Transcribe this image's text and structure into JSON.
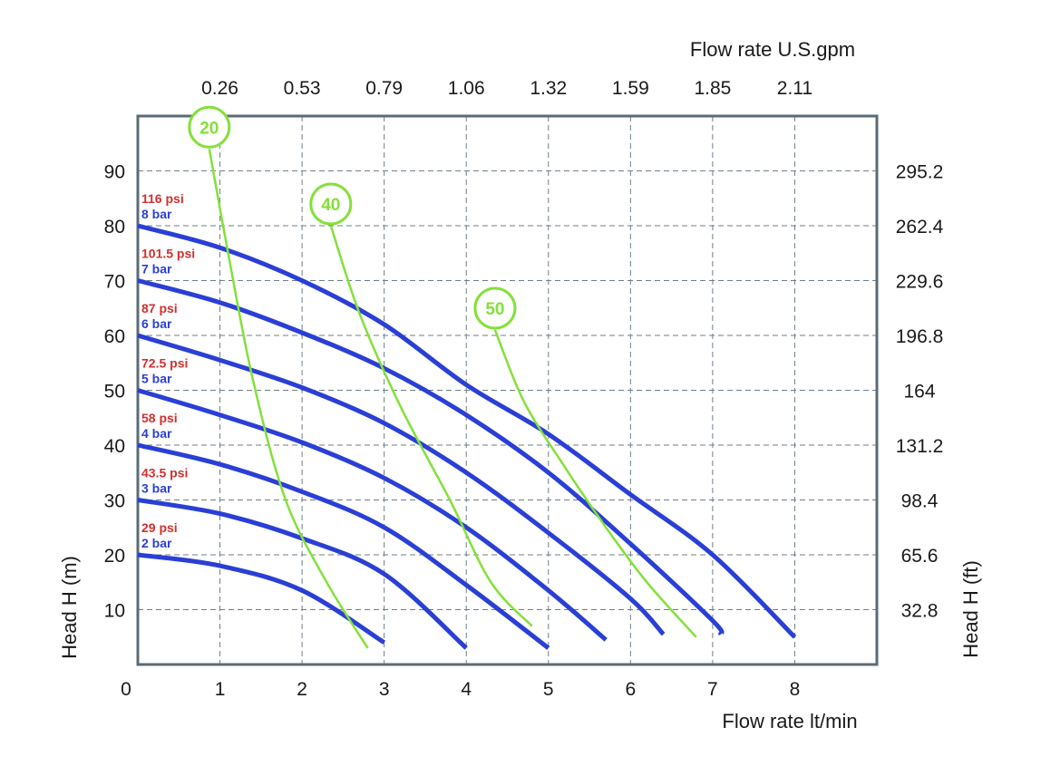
{
  "chart_data": {
    "type": "line",
    "x_bottom_label": "Flow rate  lt/min",
    "x_top_label": "Flow rate U.S.gpm",
    "y_left_label": "Head H (m)",
    "y_right_label": "Head H (ft)",
    "xlim": [
      0,
      9
    ],
    "ylim": [
      0,
      100
    ],
    "grid": true,
    "x_bottom_ticks": [
      "0",
      "1",
      "2",
      "3",
      "4",
      "5",
      "6",
      "7",
      "8"
    ],
    "x_top_ticks": [
      "0.26",
      "0.53",
      "0.79",
      "1.06",
      "1.32",
      "1.59",
      "1.85",
      "2.11"
    ],
    "y_left_ticks": [
      "10",
      "20",
      "30",
      "40",
      "50",
      "60",
      "70",
      "80",
      "90"
    ],
    "y_right_ticks": [
      "32.8",
      "65.6",
      "98.4",
      "131.2",
      "164",
      "196.8",
      "229.6",
      "262.4",
      "295.2"
    ],
    "series": [
      {
        "name": "2 bar",
        "psi": "29 psi",
        "color": "#2a3fd6",
        "points": [
          [
            0,
            20
          ],
          [
            1,
            18
          ],
          [
            2,
            13.5
          ],
          [
            3,
            4
          ]
        ]
      },
      {
        "name": "3 bar",
        "psi": "43.5 psi",
        "color": "#2a3fd6",
        "points": [
          [
            0,
            30
          ],
          [
            1,
            27.5
          ],
          [
            2,
            23
          ],
          [
            3,
            16.5
          ],
          [
            4,
            3
          ]
        ]
      },
      {
        "name": "4 bar",
        "psi": "58 psi",
        "color": "#2a3fd6",
        "points": [
          [
            0,
            40
          ],
          [
            1,
            36.5
          ],
          [
            2,
            31.5
          ],
          [
            3,
            25
          ],
          [
            4,
            14.5
          ],
          [
            5,
            3
          ]
        ]
      },
      {
        "name": "5 bar",
        "psi": "72.5 psi",
        "color": "#2a3fd6",
        "points": [
          [
            0,
            50
          ],
          [
            1,
            45.5
          ],
          [
            2,
            40.5
          ],
          [
            3,
            34
          ],
          [
            4,
            25
          ],
          [
            5,
            13.5
          ],
          [
            5.7,
            4.5
          ]
        ]
      },
      {
        "name": "6 bar",
        "psi": "87 psi",
        "color": "#2a3fd6",
        "points": [
          [
            0,
            60
          ],
          [
            1,
            55.5
          ],
          [
            2,
            50.5
          ],
          [
            3,
            44
          ],
          [
            4,
            35
          ],
          [
            5,
            24
          ],
          [
            6,
            12
          ],
          [
            6.4,
            5.5
          ]
        ]
      },
      {
        "name": "7 bar",
        "psi": "101.5 psi",
        "color": "#2a3fd6",
        "points": [
          [
            0,
            70
          ],
          [
            1,
            66
          ],
          [
            2,
            60.5
          ],
          [
            3,
            54
          ],
          [
            4,
            45.5
          ],
          [
            5,
            35
          ],
          [
            6,
            22
          ],
          [
            7,
            8
          ],
          [
            7.1,
            5.5
          ]
        ]
      },
      {
        "name": "8 bar",
        "psi": "116 psi",
        "color": "#2a3fd6",
        "points": [
          [
            0,
            80
          ],
          [
            1,
            76
          ],
          [
            2,
            70
          ],
          [
            3,
            62
          ],
          [
            4,
            51
          ],
          [
            5,
            42
          ],
          [
            6,
            31
          ],
          [
            7,
            20
          ],
          [
            8,
            5
          ]
        ]
      }
    ],
    "efficiency_curves": [
      {
        "label": "20",
        "color": "#84e03a",
        "points": [
          [
            0.87,
            94
          ],
          [
            1.1,
            75
          ],
          [
            1.4,
            52
          ],
          [
            1.8,
            30
          ],
          [
            2.3,
            15
          ],
          [
            2.8,
            3
          ]
        ]
      },
      {
        "label": "40",
        "color": "#84e03a",
        "points": [
          [
            2.35,
            80
          ],
          [
            2.7,
            64
          ],
          [
            3.2,
            47
          ],
          [
            3.8,
            30
          ],
          [
            4.3,
            15
          ],
          [
            4.8,
            7
          ]
        ]
      },
      {
        "label": "50",
        "color": "#84e03a",
        "points": [
          [
            4.35,
            61
          ],
          [
            4.7,
            48
          ],
          [
            5.2,
            36
          ],
          [
            5.7,
            25
          ],
          [
            6.2,
            15
          ],
          [
            6.8,
            5
          ]
        ]
      }
    ]
  }
}
